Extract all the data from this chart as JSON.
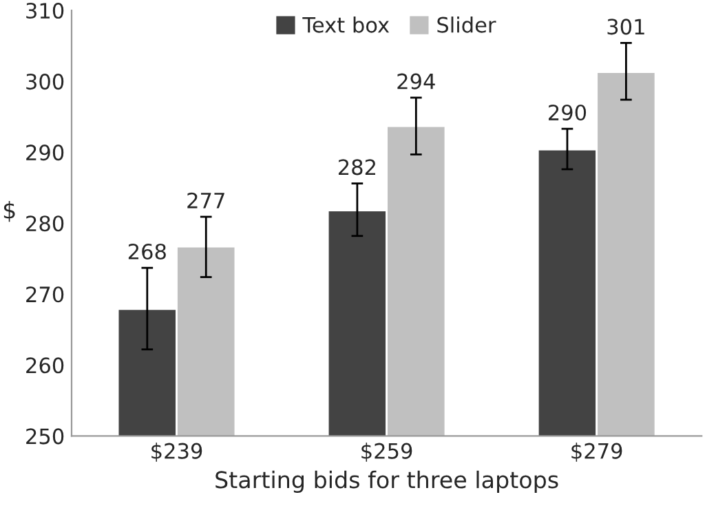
{
  "chart_data": {
    "type": "bar",
    "xlabel": "Starting bids for three laptops",
    "ylabel": "$",
    "categories": [
      "$239",
      "$259",
      "$279"
    ],
    "series": [
      {
        "name": "Text box",
        "color": "#434343",
        "values": [
          267.9,
          281.8,
          290.4
        ],
        "value_labels": [
          "268",
          "282",
          "290"
        ],
        "errors": [
          [
            262.2,
            273.7
          ],
          [
            278.2,
            285.6
          ],
          [
            287.6,
            293.3
          ]
        ]
      },
      {
        "name": "Slider",
        "color": "#c0c0c0",
        "values": [
          276.7,
          293.7,
          301.3
        ],
        "value_labels": [
          "277",
          "294",
          "301"
        ],
        "errors": [
          [
            272.4,
            280.9
          ],
          [
            289.7,
            297.7
          ],
          [
            297.4,
            305.4
          ]
        ]
      }
    ],
    "ylim": [
      250,
      310
    ],
    "yticks": [
      250,
      260,
      270,
      280,
      290,
      300,
      310
    ],
    "grid": false,
    "legend": "top"
  }
}
